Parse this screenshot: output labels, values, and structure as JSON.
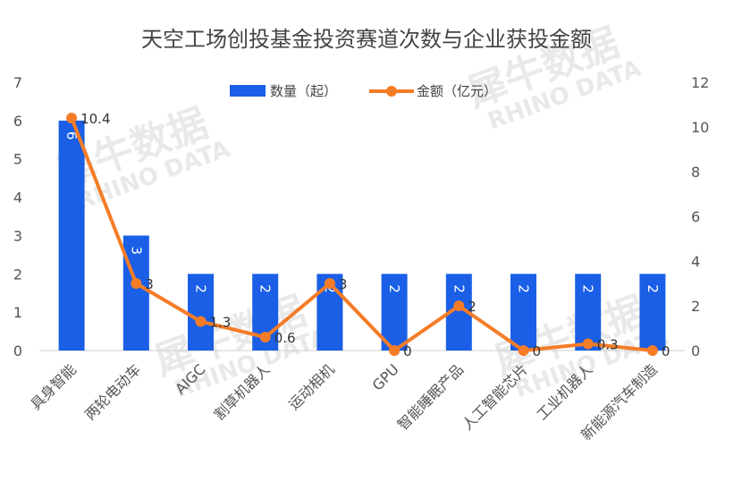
{
  "chart_data": {
    "type": "bar",
    "title": "天空工场创投基金投资赛道次数与企业获投金额",
    "categories": [
      "具身智能",
      "两轮电动车",
      "AIGC",
      "割草机器人",
      "运动相机",
      "GPU",
      "智能睡眠产品",
      "人工智能芯片",
      "工业机器人",
      "新能源汽车制造"
    ],
    "series": [
      {
        "name": "数量（起）",
        "type": "bar",
        "axis": "left",
        "color": "#1a5fe6",
        "values": [
          6,
          3,
          2,
          2,
          2,
          2,
          2,
          2,
          2,
          2
        ],
        "labels": [
          "6",
          "3",
          "2",
          "2",
          "2",
          "2",
          "2",
          "2",
          "2",
          "2"
        ]
      },
      {
        "name": "金额（亿元）",
        "type": "line",
        "axis": "right",
        "color": "#f47c27",
        "values": [
          10.4,
          3,
          1.3,
          0.6,
          3,
          0,
          2,
          0,
          0.3,
          0
        ],
        "labels": [
          "10.4",
          "3",
          "1.3",
          "0.6",
          "3",
          "0",
          "2",
          "0",
          "0.3",
          "0"
        ]
      }
    ],
    "y_left": {
      "min": 0,
      "max": 7,
      "ticks": [
        "0",
        "1",
        "2",
        "3",
        "4",
        "5",
        "6",
        "7"
      ]
    },
    "y_right": {
      "min": 0,
      "max": 12,
      "ticks": [
        "0",
        "2",
        "4",
        "6",
        "8",
        "10",
        "12"
      ]
    },
    "grid": false,
    "legend": "top-center"
  },
  "watermark": {
    "text_cn": "犀牛数据",
    "text_en": "RHINO DATA"
  }
}
